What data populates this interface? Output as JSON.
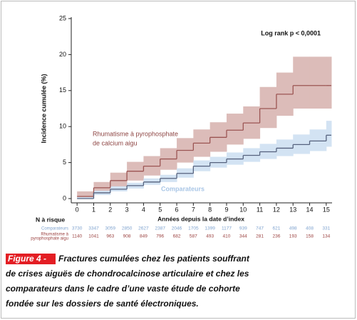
{
  "chart_data": {
    "type": "step",
    "y_label": "Incidence cumulée (%)",
    "x_label": "Années depuis la date d’index",
    "annotation": "Log rank p < 0,0001",
    "xlim": [
      -0.35,
      15.35
    ],
    "xticks": [
      0,
      1,
      2,
      3,
      4,
      5,
      6,
      7,
      8,
      9,
      10,
      11,
      12,
      13,
      14,
      15
    ],
    "ylim": [
      0,
      25
    ],
    "yticks": [
      0,
      5,
      10,
      15,
      20,
      25
    ],
    "x": [
      0,
      1,
      2,
      3,
      4,
      5,
      6,
      7,
      8,
      9,
      10,
      11,
      12,
      13,
      14,
      15
    ],
    "series": [
      {
        "label": [
          "Rhumatisme à pyrophosphate",
          "de calcium aigu"
        ],
        "color": "#9b5553",
        "band_color": "#dcbcb9",
        "label_color": "#8e4644",
        "values": [
          0.3,
          1.5,
          2.5,
          3.8,
          4.5,
          5.5,
          6.7,
          7.7,
          8.5,
          9.5,
          10.5,
          12.5,
          14.5,
          15.7,
          15.7,
          15.7
        ],
        "lower": [
          0,
          0.8,
          1.5,
          2.5,
          3.2,
          4,
          5,
          5.8,
          6.5,
          7.5,
          8.3,
          9.8,
          11.5,
          12.5,
          12.5,
          12.5
        ],
        "upper": [
          1,
          2.3,
          3.6,
          5.1,
          5.9,
          7,
          8.4,
          9.6,
          10.6,
          11.8,
          12.8,
          15.5,
          17.5,
          19.7,
          19.7,
          19.7
        ]
      },
      {
        "label": [
          "Comparateurs"
        ],
        "color": "#56627e",
        "band_color": "#d3e3f3",
        "label_color": "#a9c6e6",
        "values": [
          0,
          0.8,
          1.3,
          1.8,
          2.3,
          2.8,
          3.5,
          4.5,
          5,
          5.5,
          6,
          6.5,
          7,
          7.5,
          8,
          8.8
        ],
        "lower": [
          0,
          0.5,
          1,
          1.4,
          1.9,
          2.3,
          2.9,
          3.8,
          4.3,
          4.7,
          5.1,
          5.5,
          5.9,
          6.2,
          6.6,
          7.2
        ],
        "upper": [
          0.2,
          1.1,
          1.7,
          2.2,
          2.8,
          3.3,
          4.2,
          5.3,
          5.8,
          6.4,
          7,
          7.6,
          8.2,
          8.9,
          9.6,
          10.8
        ]
      }
    ],
    "risk_table": {
      "title": "N à risque",
      "rows": [
        {
          "label": [
            "Comparateurs"
          ],
          "color": "#7fa3cf",
          "values": [
            3730,
            3347,
            3059,
            2850,
            2627,
            2387,
            2046,
            1705,
            1399,
            1177,
            939,
            747,
            621,
            498,
            408,
            331
          ]
        },
        {
          "label": [
            "Rhumatisme à",
            "pyrophosphate aigu"
          ],
          "color": "#9b4240",
          "values": [
            1140,
            1041,
            963,
            908,
            849,
            796,
            682,
            587,
            493,
            410,
            344,
            281,
            236,
            193,
            158,
            134
          ]
        }
      ]
    }
  },
  "caption": {
    "tag": "Figure 4 -",
    "lines": [
      "Fractures cumulées chez les patients souffrant",
      "de crises aiguës de chondrocalcinose articulaire et chez les",
      "comparateurs dans le cadre d’une vaste étude de cohorte",
      "fondée sur les dossiers de santé électroniques."
    ]
  }
}
